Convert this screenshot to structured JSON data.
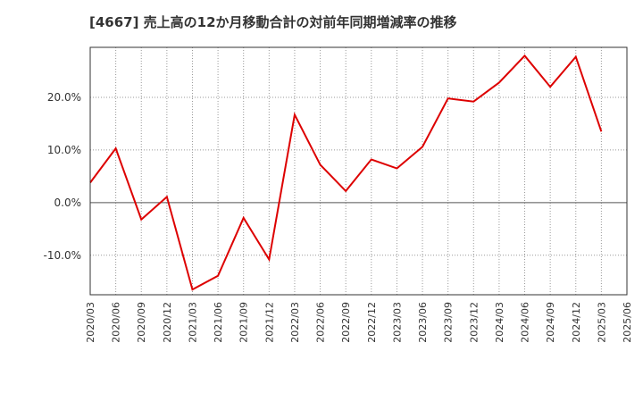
{
  "chart_data": {
    "type": "line",
    "title": "[4667]  売上高の12か月移動合計の対前年同期増減率の推移",
    "xlabel": "",
    "ylabel": "",
    "ylim": [
      -17.5,
      29.5
    ],
    "y_ticks": [
      -10,
      0,
      10,
      20
    ],
    "y_tick_labels": [
      "-10.0%",
      "0.0%",
      "10.0%",
      "20.0%"
    ],
    "x_tick_labels": [
      "2020/03",
      "2020/06",
      "2020/09",
      "2020/12",
      "2021/03",
      "2021/06",
      "2021/09",
      "2021/12",
      "2022/03",
      "2022/06",
      "2022/09",
      "2022/12",
      "2023/03",
      "2023/06",
      "2023/09",
      "2023/12",
      "2024/03",
      "2024/06",
      "2024/09",
      "2024/12",
      "2025/03",
      "2025/06"
    ],
    "grid": true,
    "series": [
      {
        "color": "#dd0000",
        "x": [
          "2020/03",
          "2020/06",
          "2020/09",
          "2020/12",
          "2021/03",
          "2021/06",
          "2021/09",
          "2021/12",
          "2022/03",
          "2022/06",
          "2022/09",
          "2022/12",
          "2023/03",
          "2023/06",
          "2023/09",
          "2023/12",
          "2024/03",
          "2024/06",
          "2024/09",
          "2024/12",
          "2025/03"
        ],
        "values": [
          3.8,
          10.3,
          -3.2,
          1.1,
          -16.5,
          -13.9,
          -2.9,
          -10.8,
          16.7,
          7.2,
          2.2,
          8.2,
          6.5,
          10.6,
          19.8,
          19.2,
          22.8,
          27.9,
          22.0,
          27.7,
          13.5
        ]
      }
    ]
  }
}
